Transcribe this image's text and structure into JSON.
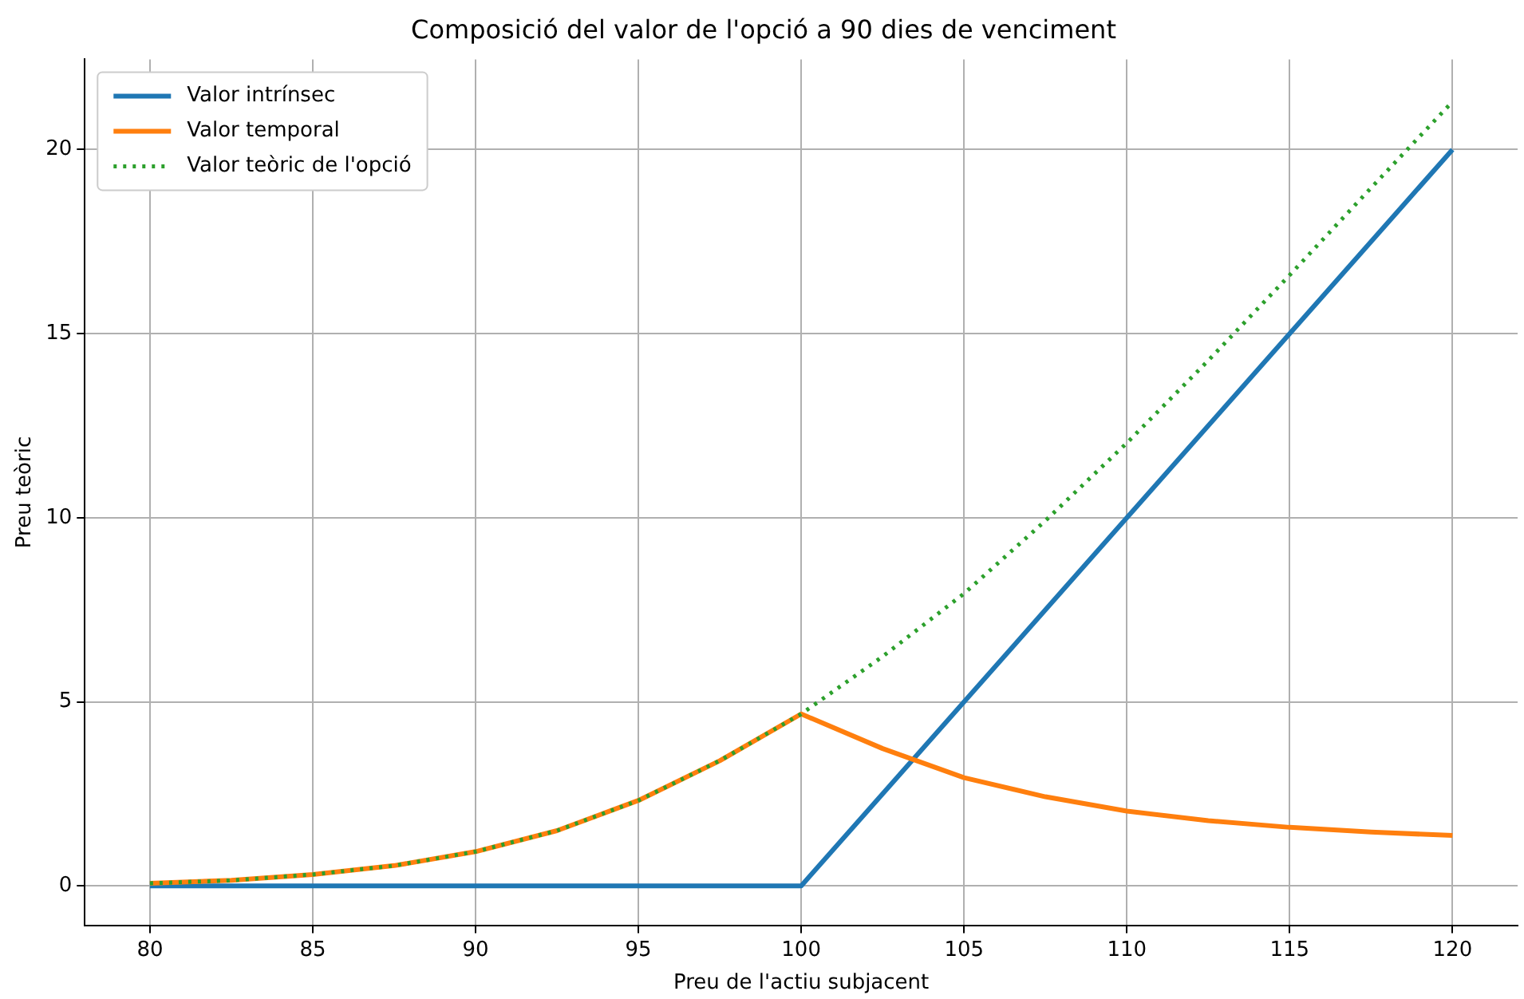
{
  "chart_data": {
    "type": "line",
    "title": "Composició del valor de l'opció a 90 dies de venciment",
    "xlabel": "Preu de l'actiu subjacent",
    "ylabel": "Preu teòric",
    "xlim": [
      78,
      122
    ],
    "xticks": [
      80,
      85,
      90,
      95,
      100,
      105,
      110,
      115,
      120
    ],
    "ylim": [
      -1.07,
      22.45
    ],
    "yticks": [
      0,
      5,
      10,
      15,
      20
    ],
    "grid": true,
    "legend": "top left",
    "series": [
      {
        "name": "Valor intrínsec",
        "color": "#1f77b4",
        "line_style": "solid",
        "x": [
          80,
          100,
          120
        ],
        "values": [
          0,
          0,
          20
        ]
      },
      {
        "name": "Valor temporal",
        "color": "#ff7f0e",
        "line_style": "solid",
        "x": [
          80,
          82.5,
          85,
          87.5,
          90,
          92.5,
          95,
          97.5,
          100,
          102.5,
          105,
          107.5,
          110,
          112.5,
          115,
          117.5,
          120
        ],
        "values": [
          0.07,
          0.15,
          0.31,
          0.55,
          0.93,
          1.5,
          2.32,
          3.4,
          4.67,
          3.73,
          2.94,
          2.42,
          2.03,
          1.77,
          1.59,
          1.46,
          1.37
        ]
      },
      {
        "name": "Valor teòric de l'opció",
        "color": "#2ca02c",
        "line_style": "dotted",
        "x": [
          80,
          82.5,
          85,
          87.5,
          90,
          92.5,
          95,
          97.5,
          100,
          102.5,
          105,
          107.5,
          110,
          112.5,
          115,
          117.5,
          120
        ],
        "values": [
          0.07,
          0.15,
          0.31,
          0.55,
          0.93,
          1.5,
          2.32,
          3.4,
          4.67,
          6.23,
          7.94,
          9.92,
          12.03,
          14.27,
          16.59,
          18.96,
          21.3
        ]
      }
    ]
  }
}
